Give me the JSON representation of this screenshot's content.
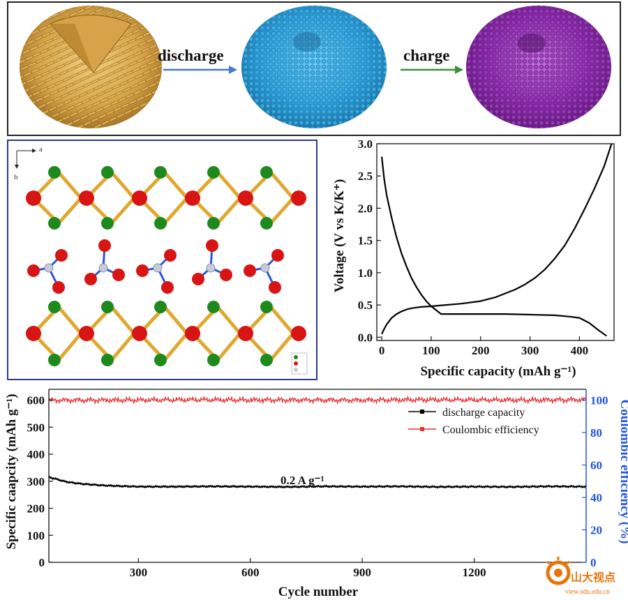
{
  "schematic": {
    "discharge_label": "discharge",
    "charge_label": "charge",
    "colors": {
      "pristine": "#d6a64a",
      "discharged": "#2e9fd8",
      "charged": "#8a2aa8",
      "discharge_arrow": "#4a78c8",
      "charge_arrow": "#3f8f3a"
    }
  },
  "crystal": {
    "axis_a": "a",
    "axis_b": "b",
    "colors": {
      "green": "#1e8a1e",
      "red": "#d81414",
      "bond_gold": "#e0a830",
      "bond_blue": "#2d55d8",
      "grey": "#c8ccd8"
    }
  },
  "chart_data": [
    {
      "type": "line",
      "xlabel": "Specific capacity (mAh g⁻¹)",
      "ylabel": "Voltage (V vs K/K⁺)",
      "xlim": [
        -10,
        470
      ],
      "ylim": [
        -0.05,
        3.0
      ],
      "xticks": [
        0,
        100,
        200,
        300,
        400
      ],
      "yticks": [
        0.0,
        0.5,
        1.0,
        1.5,
        2.0,
        2.5,
        3.0
      ],
      "ytick_labels": [
        "0.0",
        "0.5",
        "1.0",
        "1.5",
        "2.0",
        "2.5",
        "3.0"
      ],
      "grid": false,
      "series": [
        {
          "x": [
            0,
            5,
            10,
            20,
            30,
            40,
            50,
            60,
            70,
            80,
            90,
            100,
            110,
            120,
            150,
            200,
            250,
            300,
            350,
            380,
            400,
            420,
            440,
            455
          ],
          "y": [
            2.8,
            2.45,
            2.2,
            1.85,
            1.55,
            1.3,
            1.1,
            0.92,
            0.78,
            0.66,
            0.56,
            0.48,
            0.42,
            0.36,
            0.36,
            0.36,
            0.36,
            0.35,
            0.34,
            0.32,
            0.3,
            0.22,
            0.1,
            0.02
          ]
        },
        {
          "x": [
            0,
            5,
            10,
            20,
            30,
            40,
            50,
            60,
            70,
            80,
            100,
            130,
            160,
            200,
            230,
            250,
            270,
            290,
            310,
            330,
            350,
            370,
            390,
            410,
            430,
            450,
            465
          ],
          "y": [
            0.05,
            0.13,
            0.2,
            0.3,
            0.36,
            0.4,
            0.43,
            0.45,
            0.46,
            0.47,
            0.48,
            0.5,
            0.52,
            0.56,
            0.62,
            0.68,
            0.74,
            0.82,
            0.92,
            1.05,
            1.22,
            1.42,
            1.68,
            1.98,
            2.3,
            2.65,
            3.0
          ]
        }
      ]
    },
    {
      "type": "line",
      "xlabel": "Cycle number",
      "ylabel": "Specific caapcity (mAh g⁻¹)",
      "y2label": "Coulombic efficiency (%)",
      "xlim": [
        60,
        1500
      ],
      "ylim": [
        0,
        640
      ],
      "y2lim": [
        0,
        106.67
      ],
      "xticks": [
        300,
        600,
        900,
        1200
      ],
      "yticks": [
        0,
        100,
        200,
        300,
        400,
        500,
        600
      ],
      "y2ticks": [
        0,
        20,
        40,
        60,
        80,
        100
      ],
      "annotation": "0.2 A g⁻¹",
      "legend_position": "top-right",
      "series": [
        {
          "name": "discharge capacity",
          "color": "#000000",
          "x": [
            60,
            80,
            100,
            120,
            150,
            200,
            250,
            300,
            400,
            500,
            600,
            700,
            800,
            900,
            1000,
            1100,
            1200,
            1300,
            1400,
            1500
          ],
          "y": [
            315,
            308,
            300,
            295,
            290,
            285,
            282,
            280,
            280,
            281,
            280,
            279,
            281,
            280,
            281,
            279,
            280,
            279,
            281,
            280
          ]
        },
        {
          "name": "Coulombic efficiency",
          "color": "#e83030",
          "axis": "right",
          "x": [
            60,
            150,
            300,
            450,
            600,
            750,
            900,
            1050,
            1200,
            1350,
            1500
          ],
          "y": [
            100,
            100,
            100,
            100.2,
            100,
            100.1,
            100,
            100.2,
            100.1,
            100,
            100.3
          ]
        }
      ]
    }
  ],
  "watermark": {
    "text": "山大视点",
    "subtext": "view.sdu.edu.cn",
    "color": "#e8740c"
  }
}
